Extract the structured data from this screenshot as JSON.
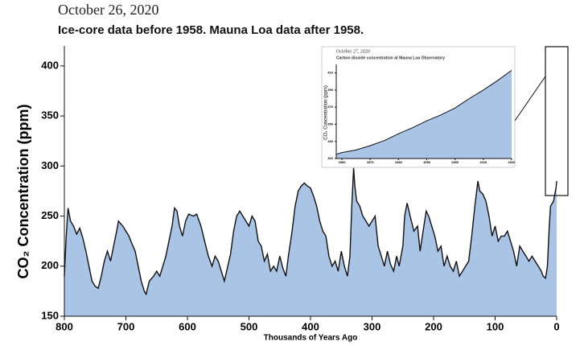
{
  "chart_data": [
    {
      "type": "area",
      "title": "October 26, 2020",
      "subtitle": "Ice-core data before 1958. Mauna Loa data after 1958.",
      "y_label": "CO₂ Concentration (ppm)",
      "x_label": "Thousands of Years Ago",
      "color": "#aac4e6",
      "line_color": "#111111",
      "xlim": [
        800,
        0
      ],
      "xticks": [
        800,
        700,
        600,
        500,
        400,
        300,
        200,
        100,
        0
      ],
      "ylim": [
        150,
        420
      ],
      "yticks": [
        150,
        200,
        250,
        300,
        350,
        400
      ],
      "x": [
        800,
        797,
        794,
        790,
        785,
        780,
        775,
        770,
        765,
        760,
        755,
        750,
        745,
        740,
        735,
        730,
        725,
        720,
        715,
        712,
        708,
        705,
        700,
        695,
        690,
        685,
        680,
        675,
        670,
        667,
        662,
        655,
        650,
        645,
        640,
        635,
        630,
        625,
        621,
        617,
        613,
        608,
        603,
        598,
        590,
        585,
        578,
        572,
        566,
        560,
        555,
        550,
        545,
        540,
        536,
        530,
        525,
        520,
        515,
        510,
        505,
        500,
        495,
        490,
        485,
        480,
        475,
        470,
        465,
        460,
        455,
        450,
        445,
        440,
        436,
        430,
        425,
        420,
        415,
        410,
        405,
        400,
        395,
        390,
        385,
        380,
        375,
        370,
        365,
        360,
        355,
        350,
        345,
        340,
        336,
        333,
        330,
        328,
        325,
        320,
        315,
        310,
        305,
        300,
        295,
        290,
        285,
        280,
        275,
        270,
        265,
        260,
        256,
        250,
        247,
        243,
        238,
        232,
        226,
        222,
        217,
        212,
        208,
        203,
        198,
        193,
        188,
        183,
        178,
        173,
        168,
        163,
        158,
        153,
        148,
        143,
        138,
        133,
        128,
        125,
        120,
        115,
        110,
        105,
        100,
        95,
        90,
        85,
        80,
        75,
        70,
        65,
        60,
        55,
        50,
        45,
        40,
        35,
        30,
        25,
        22,
        18,
        15,
        12,
        10,
        8,
        5,
        3,
        1,
        0
      ],
      "values": [
        190,
        230,
        258,
        245,
        240,
        232,
        238,
        228,
        215,
        200,
        185,
        180,
        178,
        190,
        205,
        215,
        205,
        220,
        235,
        245,
        242,
        240,
        235,
        230,
        222,
        215,
        200,
        185,
        175,
        172,
        185,
        190,
        195,
        190,
        200,
        210,
        225,
        240,
        258,
        255,
        240,
        230,
        245,
        252,
        250,
        252,
        240,
        225,
        210,
        200,
        210,
        205,
        195,
        185,
        196,
        212,
        235,
        250,
        255,
        250,
        245,
        240,
        250,
        245,
        225,
        220,
        205,
        212,
        195,
        200,
        195,
        210,
        198,
        190,
        210,
        235,
        260,
        275,
        280,
        283,
        280,
        278,
        270,
        260,
        245,
        235,
        230,
        210,
        200,
        205,
        195,
        215,
        200,
        190,
        210,
        260,
        298,
        280,
        265,
        260,
        250,
        245,
        240,
        245,
        250,
        220,
        210,
        200,
        215,
        202,
        195,
        210,
        200,
        220,
        250,
        263,
        250,
        235,
        240,
        215,
        235,
        255,
        250,
        240,
        230,
        215,
        220,
        200,
        210,
        200,
        195,
        205,
        190,
        195,
        200,
        205,
        230,
        260,
        285,
        275,
        272,
        265,
        250,
        230,
        240,
        225,
        230,
        230,
        235,
        225,
        215,
        200,
        220,
        215,
        210,
        205,
        210,
        205,
        200,
        195,
        190,
        188,
        200,
        240,
        260,
        262,
        265,
        272,
        278,
        285
      ],
      "grid": false
    },
    {
      "type": "area",
      "title": "October 27, 2020",
      "subtitle": "Carbon dioxide concentration at Mauna Loa Observatory",
      "y_label": "CO₂ Concentration (ppm)",
      "color": "#aac4e6",
      "line_color": "#111111",
      "xlim": [
        1958,
        2020
      ],
      "xticks": [
        1960,
        1970,
        1980,
        1990,
        2000,
        2010,
        2020
      ],
      "ylim": [
        310,
        420
      ],
      "yticks": [
        310,
        330,
        350,
        370,
        390,
        410
      ],
      "x": [
        1958,
        1960,
        1965,
        1970,
        1975,
        1980,
        1985,
        1990,
        1995,
        2000,
        2005,
        2010,
        2015,
        2020
      ],
      "values": [
        315,
        317,
        320,
        325,
        331,
        339,
        346,
        354,
        361,
        369,
        380,
        390,
        401,
        413
      ],
      "grid": false
    }
  ]
}
